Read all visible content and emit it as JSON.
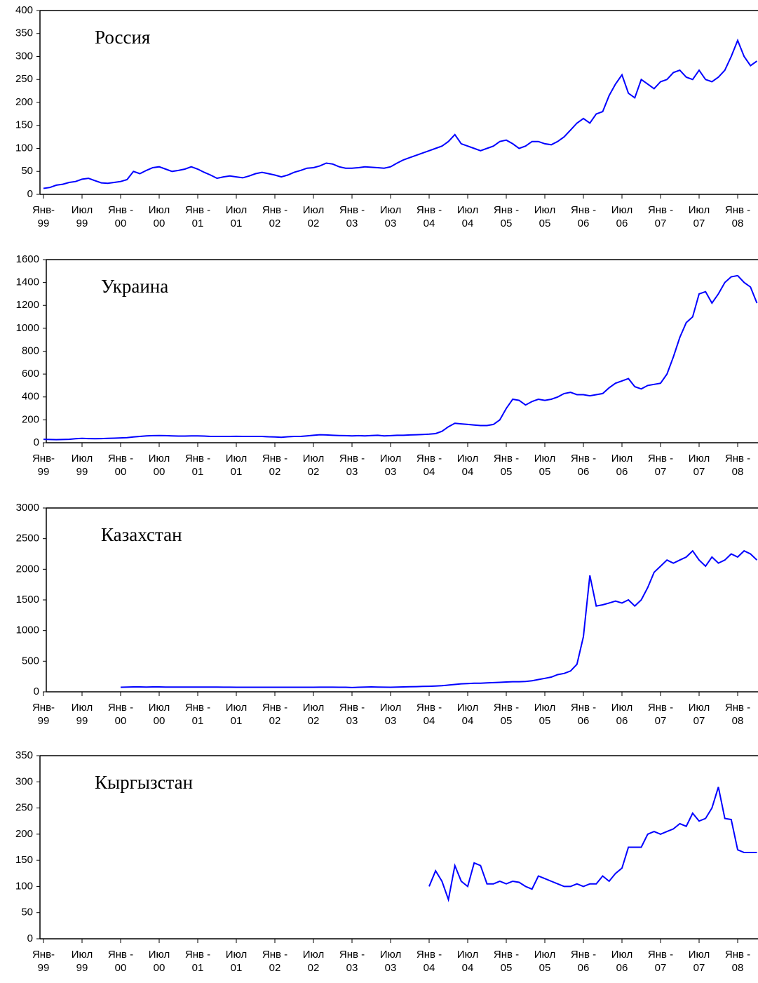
{
  "chart_data": [
    {
      "type": "line",
      "title": "Россия",
      "color": "#0000ff",
      "categories": [
        "Янв-\n99",
        null,
        null,
        null,
        null,
        null,
        "Июл\n99",
        null,
        null,
        null,
        null,
        null,
        "Янв -\n00",
        null,
        null,
        null,
        null,
        null,
        "Июл\n00",
        null,
        null,
        null,
        null,
        null,
        "Янв -\n01",
        null,
        null,
        null,
        null,
        null,
        "Июл\n01",
        null,
        null,
        null,
        null,
        null,
        "Янв -\n02",
        null,
        null,
        null,
        null,
        null,
        "Июл\n02",
        null,
        null,
        null,
        null,
        null,
        "Янв -\n03",
        null,
        null,
        null,
        null,
        null,
        "Июл\n03",
        null,
        null,
        null,
        null,
        null,
        "Янв -\n04",
        null,
        null,
        null,
        null,
        null,
        "Июл\n04",
        null,
        null,
        null,
        null,
        null,
        "Янв -\n05",
        null,
        null,
        null,
        null,
        null,
        "Июл\n05",
        null,
        null,
        null,
        null,
        null,
        "Янв -\n06",
        null,
        null,
        null,
        null,
        null,
        "Июл\n06",
        null,
        null,
        null,
        null,
        null,
        "Янв -\n07",
        null,
        null,
        null,
        null,
        null,
        "Июл\n07",
        null,
        null,
        null,
        null,
        null,
        "Янв -\n08",
        null,
        null,
        null
      ],
      "values": [
        13,
        15,
        20,
        22,
        26,
        28,
        33,
        35,
        30,
        25,
        24,
        26,
        28,
        32,
        50,
        45,
        52,
        58,
        60,
        55,
        50,
        52,
        55,
        60,
        55,
        48,
        42,
        35,
        38,
        40,
        38,
        36,
        40,
        45,
        48,
        45,
        42,
        38,
        42,
        48,
        52,
        57,
        58,
        62,
        68,
        66,
        60,
        57,
        57,
        58,
        60,
        59,
        58,
        57,
        60,
        68,
        75,
        80,
        85,
        90,
        95,
        100,
        105,
        115,
        130,
        110,
        105,
        100,
        95,
        100,
        105,
        115,
        118,
        110,
        100,
        105,
        115,
        115,
        110,
        108,
        115,
        125,
        140,
        155,
        165,
        155,
        175,
        180,
        215,
        240,
        260,
        220,
        210,
        250,
        240,
        230,
        245,
        250,
        265,
        270,
        255,
        250,
        270,
        250,
        245,
        255,
        270,
        300,
        335,
        300,
        280,
        290
      ],
      "ylim": [
        0,
        400
      ],
      "yticks": [
        0,
        50,
        100,
        150,
        200,
        250,
        300,
        350,
        400
      ]
    },
    {
      "type": "line",
      "title": "Украина",
      "color": "#0000ff",
      "categories": [
        "Янв-\n99",
        null,
        null,
        null,
        null,
        null,
        "Июл\n99",
        null,
        null,
        null,
        null,
        null,
        "Янв -\n00",
        null,
        null,
        null,
        null,
        null,
        "Июл\n00",
        null,
        null,
        null,
        null,
        null,
        "Янв -\n01",
        null,
        null,
        null,
        null,
        null,
        "Июл\n01",
        null,
        null,
        null,
        null,
        null,
        "Янв -\n02",
        null,
        null,
        null,
        null,
        null,
        "Июл\n02",
        null,
        null,
        null,
        null,
        null,
        "Янв -\n03",
        null,
        null,
        null,
        null,
        null,
        "Июл\n03",
        null,
        null,
        null,
        null,
        null,
        "Янв -\n04",
        null,
        null,
        null,
        null,
        null,
        "Июл\n04",
        null,
        null,
        null,
        null,
        null,
        "Янв -\n05",
        null,
        null,
        null,
        null,
        null,
        "Июл\n05",
        null,
        null,
        null,
        null,
        null,
        "Янв -\n06",
        null,
        null,
        null,
        null,
        null,
        "Июл\n06",
        null,
        null,
        null,
        null,
        null,
        "Янв -\n07",
        null,
        null,
        null,
        null,
        null,
        "Июл\n07",
        null,
        null,
        null,
        null,
        null,
        "Янв -\n08",
        null,
        null,
        null
      ],
      "values": [
        30,
        28,
        27,
        28,
        30,
        35,
        38,
        36,
        35,
        36,
        38,
        40,
        42,
        45,
        50,
        55,
        60,
        62,
        63,
        62,
        60,
        58,
        58,
        60,
        60,
        58,
        55,
        55,
        55,
        55,
        56,
        55,
        55,
        55,
        55,
        52,
        50,
        48,
        52,
        55,
        55,
        60,
        65,
        70,
        68,
        65,
        63,
        62,
        60,
        62,
        60,
        63,
        65,
        60,
        62,
        65,
        65,
        68,
        70,
        72,
        75,
        80,
        100,
        140,
        170,
        165,
        160,
        155,
        150,
        150,
        160,
        200,
        300,
        380,
        370,
        330,
        360,
        380,
        370,
        380,
        400,
        430,
        440,
        420,
        420,
        410,
        420,
        430,
        480,
        520,
        540,
        560,
        490,
        470,
        500,
        510,
        520,
        600,
        750,
        920,
        1050,
        1100,
        1300,
        1320,
        1220,
        1300,
        1400,
        1450,
        1460,
        1400,
        1360,
        1220
      ],
      "ylim": [
        0,
        1600
      ],
      "yticks": [
        0,
        200,
        400,
        600,
        800,
        1000,
        1200,
        1400,
        1600
      ]
    },
    {
      "type": "line",
      "title": "Казахстан",
      "color": "#0000ff",
      "categories": [
        "Янв-\n99",
        null,
        null,
        null,
        null,
        null,
        "Июл\n99",
        null,
        null,
        null,
        null,
        null,
        "Янв -\n00",
        null,
        null,
        null,
        null,
        null,
        "Июл\n00",
        null,
        null,
        null,
        null,
        null,
        "Янв -\n01",
        null,
        null,
        null,
        null,
        null,
        "Июл\n01",
        null,
        null,
        null,
        null,
        null,
        "Янв -\n02",
        null,
        null,
        null,
        null,
        null,
        "Июл\n02",
        null,
        null,
        null,
        null,
        null,
        "Янв -\n03",
        null,
        null,
        null,
        null,
        null,
        "Июл\n03",
        null,
        null,
        null,
        null,
        null,
        "Янв -\n04",
        null,
        null,
        null,
        null,
        null,
        "Июл\n04",
        null,
        null,
        null,
        null,
        null,
        "Янв -\n05",
        null,
        null,
        null,
        null,
        null,
        "Июл\n05",
        null,
        null,
        null,
        null,
        null,
        "Янв -\n06",
        null,
        null,
        null,
        null,
        null,
        "Июл\n06",
        null,
        null,
        null,
        null,
        null,
        "Янв -\n07",
        null,
        null,
        null,
        null,
        null,
        "Июл\n07",
        null,
        null,
        null,
        null,
        null,
        "Янв -\n08",
        null,
        null,
        null
      ],
      "values": [
        null,
        null,
        null,
        null,
        null,
        null,
        null,
        null,
        null,
        null,
        null,
        null,
        75,
        78,
        80,
        80,
        78,
        80,
        80,
        78,
        78,
        78,
        78,
        78,
        78,
        78,
        77,
        77,
        76,
        76,
        75,
        75,
        75,
        75,
        75,
        75,
        75,
        75,
        74,
        74,
        75,
        75,
        75,
        76,
        76,
        76,
        75,
        75,
        70,
        75,
        78,
        80,
        78,
        76,
        75,
        78,
        80,
        82,
        85,
        88,
        90,
        95,
        100,
        110,
        120,
        130,
        135,
        140,
        140,
        145,
        150,
        155,
        160,
        165,
        165,
        170,
        180,
        200,
        220,
        240,
        280,
        300,
        340,
        450,
        900,
        1900,
        1400,
        1420,
        1450,
        1480,
        1450,
        1500,
        1400,
        1500,
        1700,
        1950,
        2050,
        2150,
        2100,
        2150,
        2200,
        2300,
        2150,
        2050,
        2200,
        2100,
        2150,
        2250,
        2200,
        2300,
        2250,
        2150
      ],
      "ylim": [
        0,
        3000
      ],
      "yticks": [
        0,
        500,
        1000,
        1500,
        2000,
        2500,
        3000
      ]
    },
    {
      "type": "line",
      "title": "Кыргызстан",
      "color": "#0000ff",
      "categories": [
        "Янв-\n99",
        null,
        null,
        null,
        null,
        null,
        "Июл\n99",
        null,
        null,
        null,
        null,
        null,
        "Янв -\n00",
        null,
        null,
        null,
        null,
        null,
        "Июл\n00",
        null,
        null,
        null,
        null,
        null,
        "Янв -\n01",
        null,
        null,
        null,
        null,
        null,
        "Июл\n01",
        null,
        null,
        null,
        null,
        null,
        "Янв -\n02",
        null,
        null,
        null,
        null,
        null,
        "Июл\n02",
        null,
        null,
        null,
        null,
        null,
        "Янв -\n03",
        null,
        null,
        null,
        null,
        null,
        "Июл\n03",
        null,
        null,
        null,
        null,
        null,
        "Янв -\n04",
        null,
        null,
        null,
        null,
        null,
        "Июл\n04",
        null,
        null,
        null,
        null,
        null,
        "Янв -\n05",
        null,
        null,
        null,
        null,
        null,
        "Июл\n05",
        null,
        null,
        null,
        null,
        null,
        "Янв -\n06",
        null,
        null,
        null,
        null,
        null,
        "Июл\n06",
        null,
        null,
        null,
        null,
        null,
        "Янв -\n07",
        null,
        null,
        null,
        null,
        null,
        "Июл\n07",
        null,
        null,
        null,
        null,
        null,
        "Янв -\n08",
        null,
        null,
        null
      ],
      "values": [
        null,
        null,
        null,
        null,
        null,
        null,
        null,
        null,
        null,
        null,
        null,
        null,
        null,
        null,
        null,
        null,
        null,
        null,
        null,
        null,
        null,
        null,
        null,
        null,
        null,
        null,
        null,
        null,
        null,
        null,
        null,
        null,
        null,
        null,
        null,
        null,
        null,
        null,
        null,
        null,
        null,
        null,
        null,
        null,
        null,
        null,
        null,
        null,
        null,
        null,
        null,
        null,
        null,
        null,
        null,
        null,
        null,
        null,
        null,
        null,
        100,
        130,
        110,
        75,
        140,
        110,
        100,
        145,
        140,
        105,
        105,
        110,
        105,
        110,
        108,
        100,
        95,
        120,
        115,
        110,
        105,
        100,
        100,
        105,
        100,
        105,
        105,
        120,
        110,
        125,
        135,
        175,
        175,
        175,
        200,
        205,
        200,
        205,
        210,
        220,
        215,
        240,
        225,
        230,
        250,
        290,
        230,
        228,
        170,
        165,
        165,
        165
      ],
      "ylim": [
        0,
        350
      ],
      "yticks": [
        0,
        50,
        100,
        150,
        200,
        250,
        300,
        350
      ]
    }
  ]
}
